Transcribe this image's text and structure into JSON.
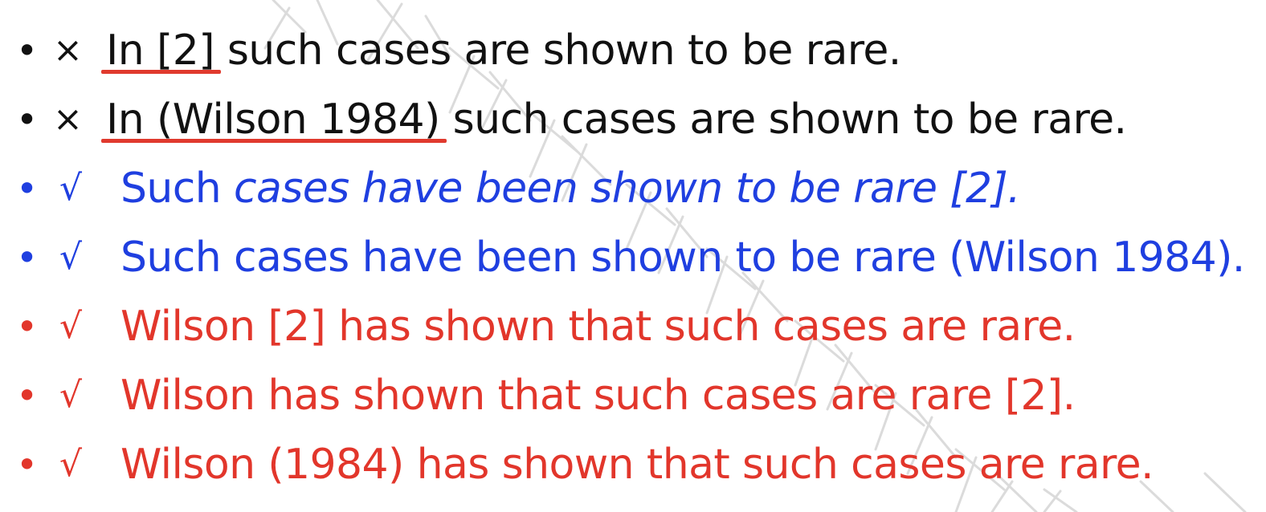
{
  "colors": {
    "black": "#111111",
    "blue": "#1f3fe0",
    "red": "#e2362b",
    "underline": "#e03a2e",
    "watermark": "#c8c8c8"
  },
  "bullet_char": "•",
  "items": [
    {
      "mark": "×",
      "color": "black",
      "underlined": "In [2]",
      "rest": " such cases are shown to be rare."
    },
    {
      "mark": "×",
      "color": "black",
      "underlined": "In (Wilson 1984)",
      "rest": " such cases are shown to be rare."
    },
    {
      "mark": "√",
      "color": "blue",
      "plain": "Such ",
      "italic": "cases have been shown to be rare [2]."
    },
    {
      "mark": "√",
      "color": "blue",
      "text": "Such cases have been shown to be rare (Wilson 1984)."
    },
    {
      "mark": "√",
      "color": "red",
      "text": "Wilson [2] has shown that such cases are rare."
    },
    {
      "mark": "√",
      "color": "red",
      "text": "Wilson has shown that such cases are rare [2]."
    },
    {
      "mark": "√",
      "color": "red",
      "text": "Wilson (1984) has shown that such cases are rare."
    }
  ]
}
